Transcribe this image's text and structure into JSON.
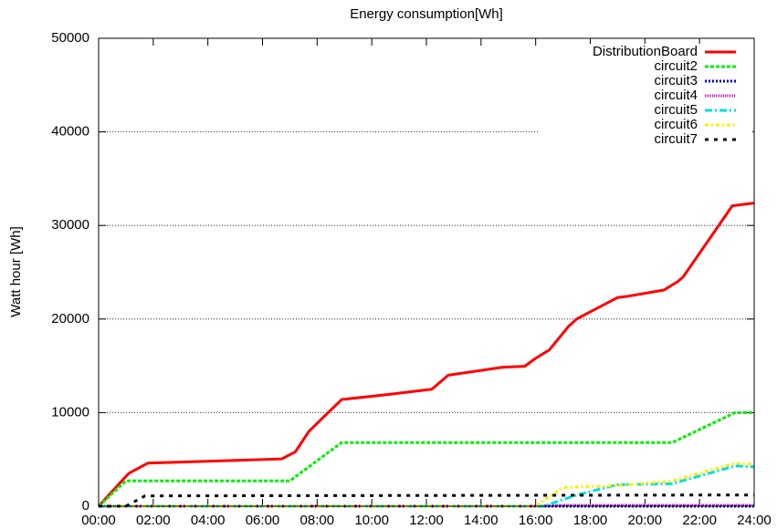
{
  "chart_data": {
    "type": "line",
    "title": "Energy consumption[Wh]",
    "y_label": "Watt hour [Wh]",
    "xlim": [
      0,
      24
    ],
    "xticks": [
      {
        "value": 0,
        "label": "00:00"
      },
      {
        "value": 2,
        "label": "02:00"
      },
      {
        "value": 4,
        "label": "04:00"
      },
      {
        "value": 6,
        "label": "06:00"
      },
      {
        "value": 8,
        "label": "08:00"
      },
      {
        "value": 10,
        "label": "10:00"
      },
      {
        "value": 12,
        "label": "12:00"
      },
      {
        "value": 14,
        "label": "14:00"
      },
      {
        "value": 16,
        "label": "16:00"
      },
      {
        "value": 18,
        "label": "18:00"
      },
      {
        "value": 20,
        "label": "20:00"
      },
      {
        "value": 22,
        "label": "22:00"
      },
      {
        "value": 24,
        "label": "24:00"
      }
    ],
    "ylim": [
      0,
      50000
    ],
    "yticks": [
      0,
      10000,
      20000,
      30000,
      40000,
      50000
    ],
    "grid": true,
    "legend": "top-right",
    "series": [
      {
        "name": "DistributionBoard",
        "color": "#ff0000",
        "dash": "none",
        "width": 3,
        "x": [
          0,
          1.1,
          1.8,
          6.7,
          7.2,
          7.7,
          8.4,
          8.9,
          10.5,
          12.2,
          12.8,
          14.8,
          15.6,
          16.0,
          16.5,
          17.2,
          17.5,
          19.0,
          19.3,
          20.7,
          21.2,
          21.4,
          23.2,
          24
        ],
        "values": [
          0,
          3500,
          4600,
          5050,
          5800,
          8000,
          10000,
          11400,
          11900,
          12500,
          14000,
          14850,
          14950,
          15800,
          16700,
          19200,
          20000,
          22300,
          22400,
          23100,
          24000,
          24500,
          32100,
          32400
        ]
      },
      {
        "name": "circuit2",
        "color": "#00ee00",
        "dash": "4,2",
        "width": 3,
        "x": [
          0,
          1.0,
          7.0,
          8.9,
          21.0,
          23.3,
          24
        ],
        "values": [
          0,
          2700,
          2700,
          6800,
          6800,
          10000,
          10000
        ]
      },
      {
        "name": "circuit3",
        "color": "#0000cc",
        "dash": "2,2",
        "width": 3,
        "x": [
          0,
          24
        ],
        "values": [
          0,
          0
        ]
      },
      {
        "name": "circuit4",
        "color": "#cc00cc",
        "dash": "1,1",
        "width": 3,
        "x": [
          0,
          16,
          17,
          24
        ],
        "values": [
          0,
          0,
          100,
          100
        ]
      },
      {
        "name": "circuit5",
        "color": "#00dddd",
        "dash": "8,3,2,3",
        "width": 3,
        "x": [
          0,
          16.3,
          17.5,
          19,
          21,
          23.3,
          24
        ],
        "values": [
          0,
          0,
          1200,
          2300,
          2400,
          4300,
          4200
        ]
      },
      {
        "name": "circuit6",
        "color": "#ffee00",
        "dash": "4,3,2,3",
        "width": 3,
        "x": [
          0,
          16,
          17,
          19,
          21,
          23.3,
          24
        ],
        "values": [
          0,
          0,
          2000,
          2200,
          2700,
          4600,
          4500
        ]
      },
      {
        "name": "circuit7",
        "color": "#000000",
        "dash": "4,6",
        "width": 3,
        "x": [
          0,
          1,
          1.7,
          24
        ],
        "values": [
          0,
          0,
          1100,
          1200
        ]
      }
    ]
  }
}
